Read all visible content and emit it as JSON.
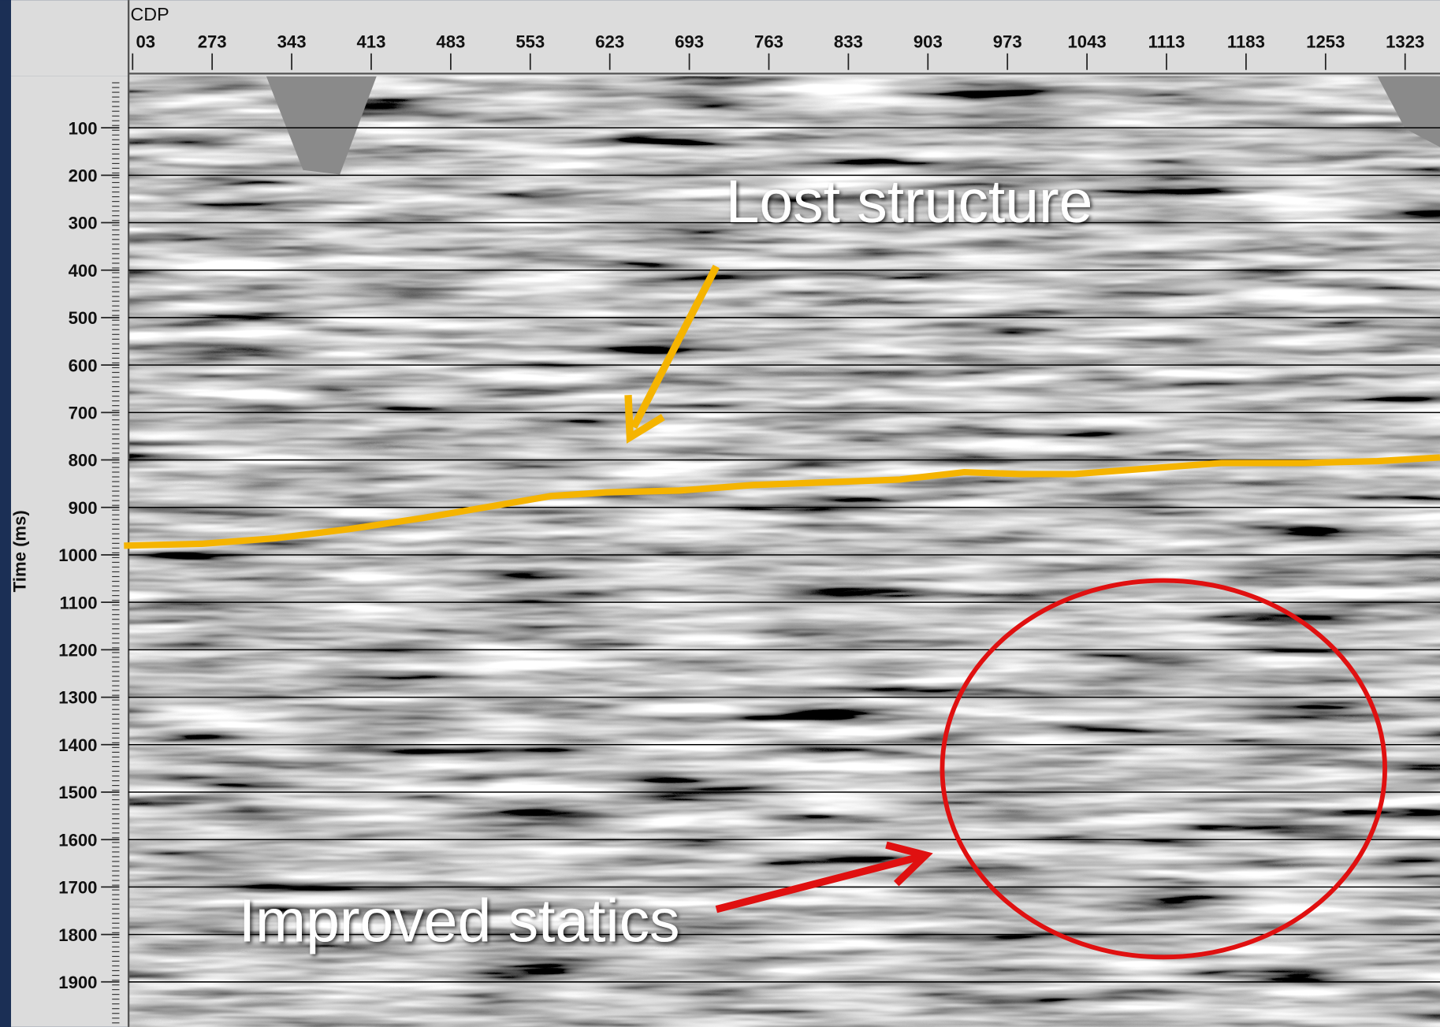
{
  "x_axis": {
    "label": "CDP",
    "ticks": [
      "03",
      "273",
      "343",
      "413",
      "483",
      "553",
      "623",
      "693",
      "763",
      "833",
      "903",
      "973",
      "1043",
      "1113",
      "1183",
      "1253",
      "1323"
    ]
  },
  "y_axis": {
    "label": "Time (ms)",
    "ticks": [
      "100",
      "200",
      "300",
      "400",
      "500",
      "600",
      "700",
      "800",
      "900",
      "1000",
      "1100",
      "1200",
      "1300",
      "1400",
      "1500",
      "1600",
      "1700",
      "1800",
      "1900"
    ]
  },
  "annotations": {
    "lost": "Lost structure",
    "improved": "Improved statics"
  }
}
